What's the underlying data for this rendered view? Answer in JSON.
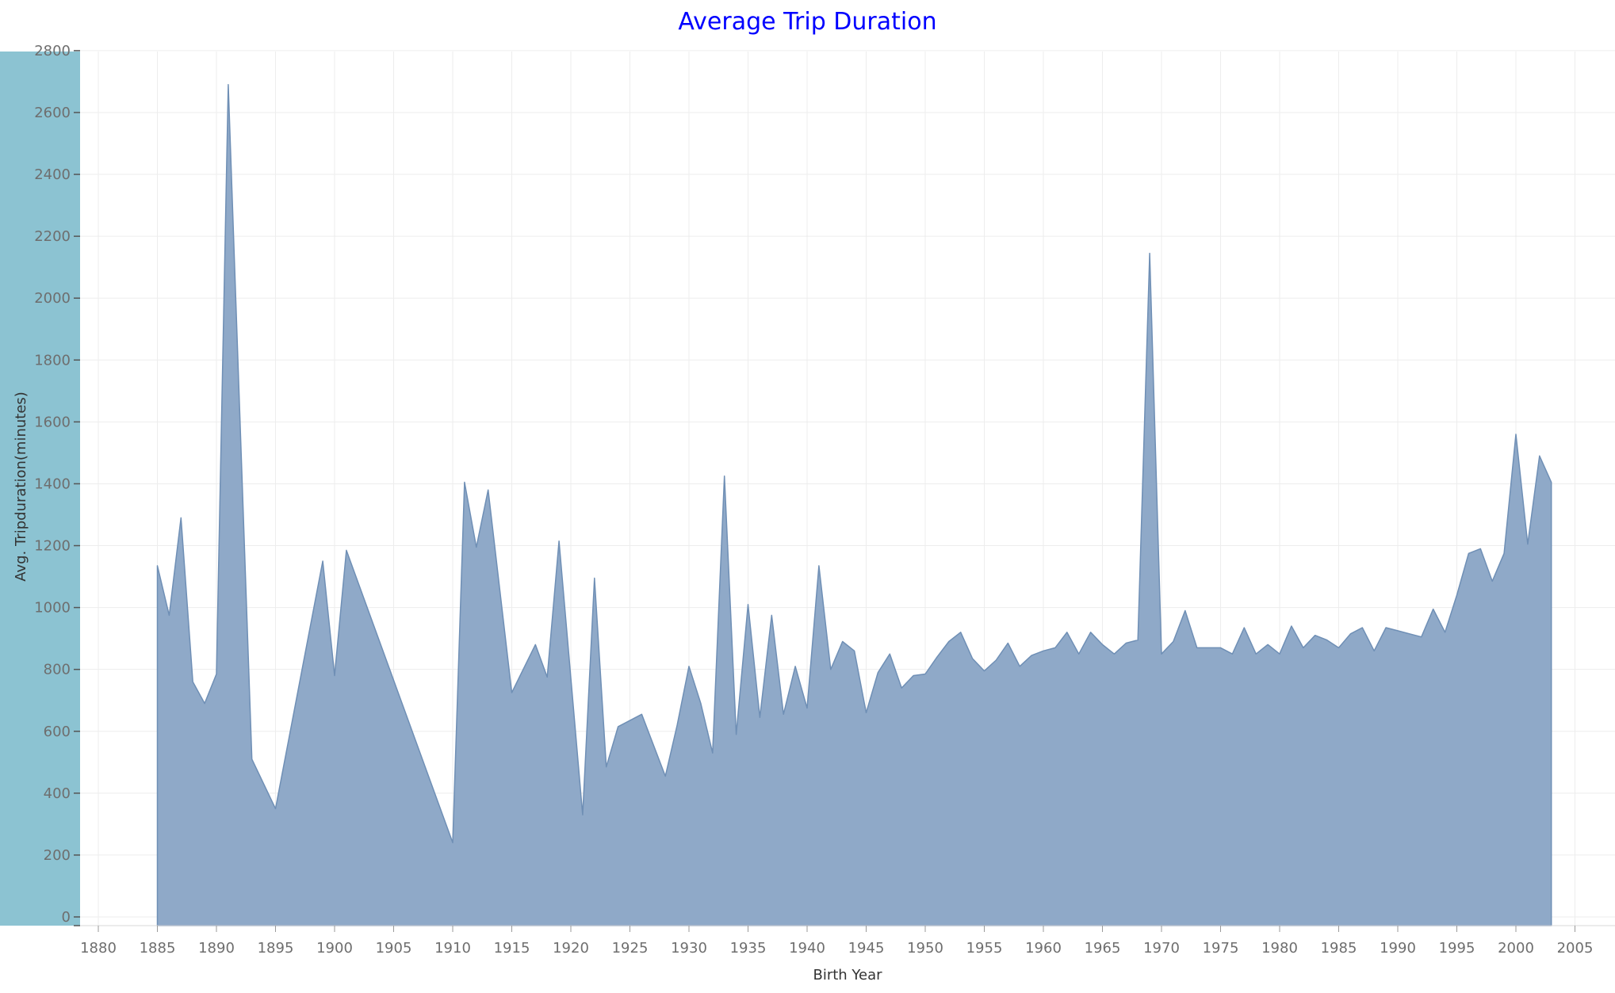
{
  "colors": {
    "title": "#0000ff",
    "area_fill": "#8fa9c8",
    "area_stroke": "#6f8fb5",
    "y_axis_band": "#8cc3d2",
    "grid": "#ededed"
  },
  "chart_data": {
    "type": "area",
    "title": "Average Trip Duration",
    "xlabel": "Birth Year",
    "ylabel": "Avg. Tripduration(minutes)",
    "xlim": [
      1880,
      2005
    ],
    "ylim": [
      0,
      2800
    ],
    "grid": true,
    "x_ticks": [
      "1880",
      "1885",
      "1890",
      "1895",
      "1900",
      "1905",
      "1910",
      "1915",
      "1920",
      "1925",
      "1930",
      "1935",
      "1940",
      "1945",
      "1950",
      "1955",
      "1960",
      "1965",
      "1970",
      "1975",
      "1980",
      "1985",
      "1990",
      "1995",
      "2000",
      "2005"
    ],
    "y_ticks": [
      "0",
      "200",
      "400",
      "600",
      "800",
      "1000",
      "1200",
      "1400",
      "1600",
      "1800",
      "2000",
      "2200",
      "2400",
      "2600",
      "2800"
    ],
    "series": [
      {
        "x": [
          1885,
          1886,
          1887,
          1888,
          1889,
          1890,
          1891,
          1893,
          1895,
          1899,
          1900,
          1901,
          1910,
          1911,
          1912,
          1913,
          1915,
          1917,
          1918,
          1919,
          1921,
          1922,
          1923,
          1924,
          1926,
          1928,
          1929,
          1930,
          1931,
          1932,
          1933,
          1934,
          1935,
          1936,
          1937,
          1938,
          1939,
          1940,
          1941,
          1942,
          1943,
          1944,
          1945,
          1946,
          1947,
          1948,
          1949,
          1950,
          1951,
          1952,
          1953,
          1954,
          1955,
          1956,
          1957,
          1958,
          1959,
          1960,
          1961,
          1962,
          1963,
          1964,
          1965,
          1966,
          1967,
          1968,
          1969,
          1970,
          1971,
          1972,
          1973,
          1974,
          1975,
          1976,
          1977,
          1978,
          1979,
          1980,
          1981,
          1982,
          1983,
          1984,
          1985,
          1986,
          1987,
          1988,
          1989,
          1990,
          1991,
          1992,
          1993,
          1994,
          1995,
          1996,
          1997,
          1998,
          1999,
          2000,
          2001,
          2002,
          2003
        ],
        "y": [
          1135,
          975,
          1290,
          760,
          690,
          785,
          2690,
          510,
          350,
          1150,
          780,
          1185,
          240,
          1405,
          1195,
          1380,
          725,
          880,
          775,
          1215,
          330,
          1095,
          485,
          615,
          655,
          455,
          620,
          810,
          690,
          530,
          1425,
          590,
          1010,
          645,
          975,
          655,
          810,
          675,
          1135,
          800,
          890,
          860,
          660,
          790,
          850,
          740,
          780,
          785,
          840,
          890,
          920,
          835,
          795,
          830,
          885,
          810,
          845,
          860,
          870,
          920,
          850,
          920,
          880,
          850,
          885,
          895,
          2145,
          850,
          890,
          990,
          870,
          870,
          870,
          850,
          935,
          850,
          880,
          850,
          940,
          870,
          910,
          895,
          870,
          915,
          935,
          860,
          935,
          925,
          915,
          905,
          995,
          920,
          1040,
          1175,
          1190,
          1085,
          1175,
          1560,
          1205,
          1490,
          1405
        ]
      }
    ]
  }
}
